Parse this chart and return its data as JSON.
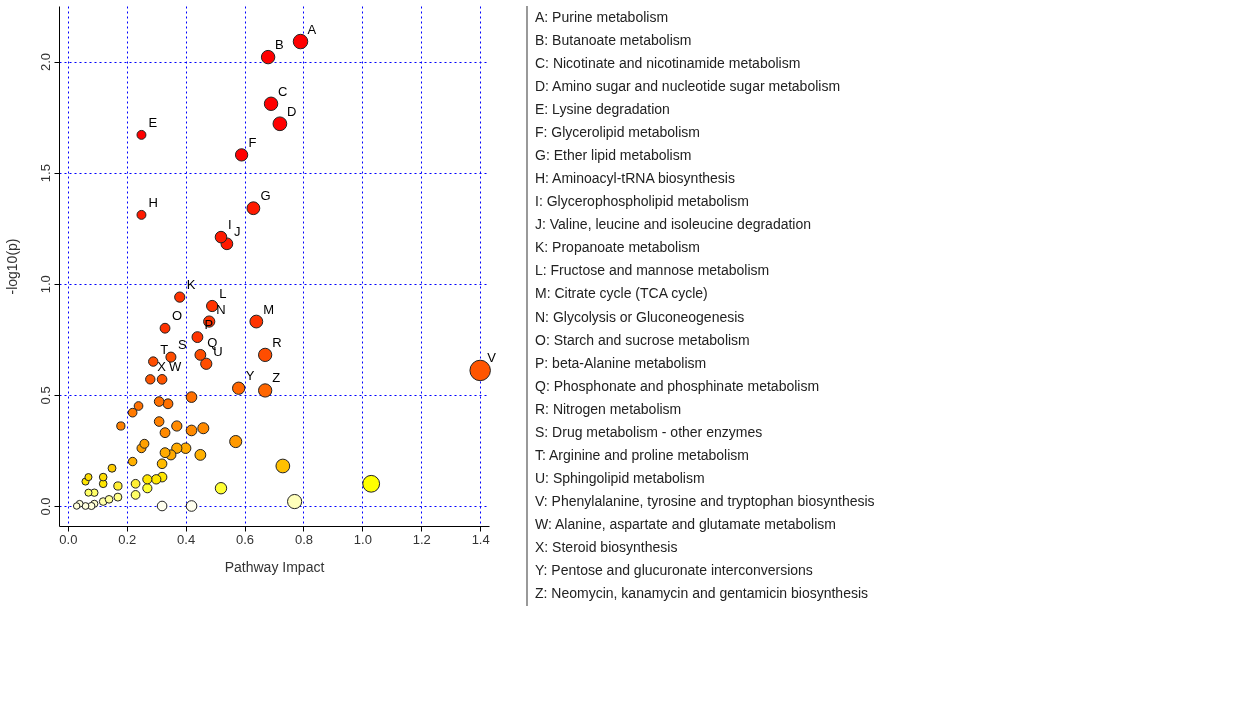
{
  "chart_data": {
    "type": "bubble",
    "xlabel": "Pathway Impact",
    "ylabel": "-log10(p)",
    "x": [
      0.79,
      0.68,
      0.69,
      0.72,
      0.25,
      0.59,
      0.63,
      0.25,
      0.52,
      0.54,
      0.38,
      0.49,
      0.64,
      0.48,
      0.33,
      0.44,
      0.45,
      0.67,
      0.35,
      0.29,
      0.47,
      1.4,
      0.32,
      0.28,
      0.58,
      0.67,
      0.42,
      0.24,
      0.31,
      0.34,
      0.22,
      0.18,
      0.31,
      0.37,
      0.33,
      0.42,
      0.46,
      0.57,
      0.26,
      0.25,
      0.33,
      0.35,
      0.37,
      0.4,
      0.45,
      0.22,
      0.32,
      0.73,
      0.15,
      0.07,
      0.12,
      0.06,
      0.12,
      0.17,
      0.23,
      0.27,
      0.3,
      0.32,
      0.27,
      0.23,
      0.07,
      0.09,
      0.52,
      1.03,
      0.17,
      0.14,
      0.12,
      0.03,
      0.04,
      0.06,
      0.08,
      0.09,
      0.32,
      0.42,
      0.77
    ],
    "values": [
      2.09,
      2.02,
      1.81,
      1.72,
      1.67,
      1.58,
      1.34,
      1.31,
      1.21,
      1.18,
      0.94,
      0.9,
      0.83,
      0.83,
      0.8,
      0.76,
      0.68,
      0.68,
      0.67,
      0.65,
      0.64,
      0.61,
      0.57,
      0.57,
      0.53,
      0.52,
      0.49,
      0.45,
      0.47,
      0.46,
      0.42,
      0.36,
      0.38,
      0.36,
      0.33,
      0.34,
      0.35,
      0.29,
      0.28,
      0.26,
      0.24,
      0.23,
      0.26,
      0.26,
      0.23,
      0.2,
      0.19,
      0.18,
      0.17,
      0.13,
      0.13,
      0.11,
      0.1,
      0.09,
      0.1,
      0.12,
      0.12,
      0.13,
      0.08,
      0.05,
      0.06,
      0.06,
      0.08,
      0.1,
      0.04,
      0.03,
      0.02,
      0.0,
      0.01,
      0.0,
      0.0,
      0.01,
      0.0,
      0.0,
      0.02
    ],
    "sizes": [
      0.5,
      0.43,
      0.43,
      0.45,
      0.19,
      0.36,
      0.39,
      0.19,
      0.32,
      0.33,
      0.25,
      0.3,
      0.39,
      0.3,
      0.23,
      0.28,
      0.28,
      0.42,
      0.24,
      0.21,
      0.3,
      1,
      0.22,
      0.21,
      0.36,
      0.42,
      0.27,
      0.18,
      0.22,
      0.23,
      0.18,
      0.16,
      0.22,
      0.25,
      0.23,
      0.27,
      0.29,
      0.35,
      0.19,
      0.19,
      0.23,
      0.24,
      0.25,
      0.26,
      0.28,
      0.17,
      0.22,
      0.45,
      0.15,
      0.12,
      0.14,
      0.12,
      0.14,
      0.16,
      0.18,
      0.2,
      0.21,
      0.22,
      0.2,
      0.18,
      0.12,
      0.13,
      0.31,
      0.67,
      0.15,
      0.14,
      0.14,
      0.1,
      0.11,
      0.11,
      0.12,
      0.12,
      0.22,
      0.27,
      0.48
    ],
    "colors": [
      "#ff0000",
      "#ff0000",
      "#ff0000",
      "#ff0000",
      "#ff0000",
      "#ff0000",
      "#ff1a00",
      "#ff1a00",
      "#ff1a00",
      "#ff1a00",
      "#ff3300",
      "#ff3300",
      "#ff3300",
      "#ff3300",
      "#ff3300",
      "#ff3300",
      "#ff4d00",
      "#ff4d00",
      "#ff4d00",
      "#ff4d00",
      "#ff4d00",
      "#ff5500",
      "#ff5500",
      "#ff5500",
      "#ff6600",
      "#ff6600",
      "#ff6f00",
      "#ff7000",
      "#ff7000",
      "#ff7000",
      "#ff7a00",
      "#ff8000",
      "#ff8000",
      "#ff8a00",
      "#ff8a00",
      "#ff8a00",
      "#ff8a00",
      "#ff9900",
      "#ffa000",
      "#ffa000",
      "#ffaa00",
      "#ffaa00",
      "#ffaa00",
      "#ffaa00",
      "#ffb000",
      "#ffb000",
      "#ffbb00",
      "#ffc000",
      "#ffcc00",
      "#ffdd00",
      "#ffdd00",
      "#ffe600",
      "#ffe600",
      "#ffee33",
      "#ffee33",
      "#ffe600",
      "#ffe600",
      "#ffe600",
      "#ffff33",
      "#ffff66",
      "#ffff66",
      "#ffff66",
      "#ffff33",
      "#ffff00",
      "#ffff88",
      "#ffff99",
      "#ffffaa",
      "#ffffdd",
      "#ffffdd",
      "#ffffdd",
      "#ffffdd",
      "#ffffcc",
      "#ffffee",
      "#ffffee",
      "#ffffbb"
    ],
    "xlim": [
      -0.03,
      1.43
    ],
    "ylim": [
      -0.09,
      2.25
    ],
    "xticks": [
      {
        "value": 0,
        "label": "0.0"
      },
      0.2,
      0.4,
      0.6,
      0.8,
      {
        "value": 1,
        "label": "1.0"
      },
      1.2,
      1.4
    ],
    "yticks": [
      {
        "value": 0,
        "label": "0.0"
      },
      0.5,
      {
        "value": 1,
        "label": "1.0"
      },
      1.5,
      {
        "value": 2,
        "label": "2.0"
      }
    ],
    "grid": true,
    "annotations": [
      {
        "text": "A",
        "x": 0.79,
        "y": 2.09
      },
      {
        "text": "B",
        "x": 0.68,
        "y": 2.02
      },
      {
        "text": "C",
        "x": 0.69,
        "y": 1.81
      },
      {
        "text": "D",
        "x": 0.72,
        "y": 1.72
      },
      {
        "text": "E",
        "x": 0.25,
        "y": 1.67
      },
      {
        "text": "F",
        "x": 0.59,
        "y": 1.58
      },
      {
        "text": "G",
        "x": 0.63,
        "y": 1.34
      },
      {
        "text": "H",
        "x": 0.25,
        "y": 1.31
      },
      {
        "text": "I",
        "x": 0.52,
        "y": 1.21
      },
      {
        "text": "J",
        "x": 0.54,
        "y": 1.18
      },
      {
        "text": "K",
        "x": 0.38,
        "y": 0.94
      },
      {
        "text": "L",
        "x": 0.49,
        "y": 0.9
      },
      {
        "text": "M",
        "x": 0.64,
        "y": 0.83
      },
      {
        "text": "N",
        "x": 0.48,
        "y": 0.83
      },
      {
        "text": "O",
        "x": 0.33,
        "y": 0.8
      },
      {
        "text": "P",
        "x": 0.44,
        "y": 0.76
      },
      {
        "text": "Q",
        "x": 0.45,
        "y": 0.68
      },
      {
        "text": "R",
        "x": 0.67,
        "y": 0.68
      },
      {
        "text": "S",
        "x": 0.35,
        "y": 0.67
      },
      {
        "text": "T",
        "x": 0.29,
        "y": 0.65
      },
      {
        "text": "U",
        "x": 0.47,
        "y": 0.64
      },
      {
        "text": "V",
        "x": 1.4,
        "y": 0.61
      },
      {
        "text": "W",
        "x": 0.32,
        "y": 0.57
      },
      {
        "text": "X",
        "x": 0.28,
        "y": 0.57
      },
      {
        "text": "Y",
        "x": 0.58,
        "y": 0.53
      },
      {
        "text": "Z",
        "x": 0.67,
        "y": 0.52
      },
      "A: Purine metabolism",
      "B: Butanoate metabolism",
      "C: Nicotinate and nicotinamide metabolism",
      "D: Amino sugar and nucleotide sugar metabolism",
      "E: Lysine degradation",
      "F: Glycerolipid metabolism",
      "G: Ether lipid metabolism",
      "H: Aminoacyl-tRNA biosynthesis",
      "I: Glycerophospholipid metabolism",
      "J: Valine, leucine and isoleucine degradation",
      "K: Propanoate metabolism",
      "L: Fructose and mannose metabolism",
      "M: Citrate cycle (TCA cycle)",
      "N: Glycolysis or Gluconeogenesis",
      "O: Starch and sucrose metabolism",
      "P: beta-Alanine metabolism",
      "Q: Phosphonate and phosphinate metabolism",
      "R: Nitrogen metabolism",
      "S: Drug metabolism - other enzymes",
      "T: Arginine and proline metabolism",
      "U: Sphingolipid metabolism",
      "V: Phenylalanine, tyrosine and tryptophan biosynthesis",
      "W: Alanine, aspartate and glutamate metabolism",
      "X: Steroid biosynthesis",
      "Y: Pentose and glucuronate interconversions",
      "Z: Neomycin, kanamycin and gentamicin biosynthesis"
    ]
  }
}
